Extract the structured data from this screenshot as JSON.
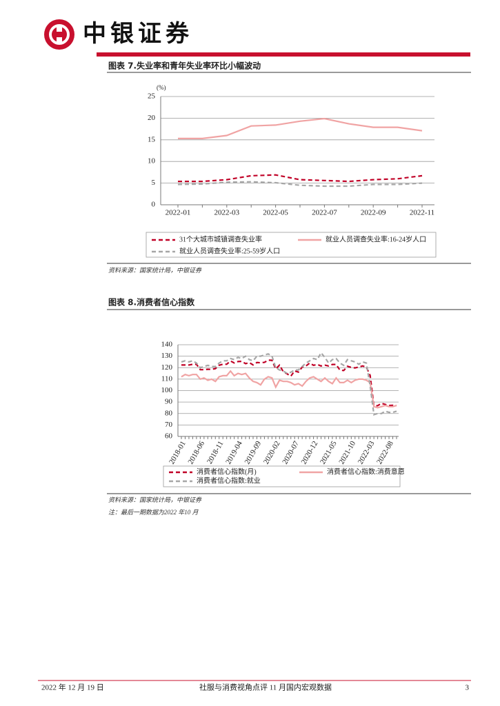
{
  "header": {
    "brand": "中银证券"
  },
  "chart_data": [
    {
      "type": "line",
      "title": "图表 7.失业率和青年失业率环比小幅波动",
      "y_unit": "(%)",
      "categories": [
        "2022-01",
        null,
        "2022-03",
        null,
        "2022-05",
        null,
        "2022-07",
        null,
        "2022-09",
        null,
        "2022-11"
      ],
      "series": [
        {
          "name": "31个大城市城镇调查失业率",
          "color": "#c00026",
          "style": "dashed",
          "values": [
            5.4,
            5.4,
            5.8,
            6.7,
            6.9,
            5.8,
            5.6,
            5.4,
            5.8,
            6.0,
            6.7
          ]
        },
        {
          "name": "就业人员调查失业率:16-24岁人口",
          "color": "#f0a3a3",
          "style": "solid",
          "values": [
            15.3,
            15.3,
            16.0,
            18.2,
            18.4,
            19.3,
            19.9,
            18.7,
            17.9,
            17.9,
            17.1
          ]
        },
        {
          "name": "就业人员调查失业率:25-59岁人口",
          "color": "#a6a6a6",
          "style": "dashed",
          "values": [
            4.7,
            4.8,
            5.2,
            5.3,
            5.1,
            4.5,
            4.3,
            4.3,
            4.7,
            4.7,
            5.0
          ]
        }
      ],
      "ylim": [
        0,
        25
      ],
      "yticks": [
        0,
        5,
        10,
        15,
        20,
        25
      ],
      "grid": true
    },
    {
      "type": "line",
      "title": "图表 8.消费者信心指数",
      "categories": [
        "2018-01",
        null,
        null,
        null,
        null,
        "2018-06",
        null,
        null,
        null,
        null,
        "2018-11",
        null,
        null,
        null,
        null,
        "2019-04",
        null,
        null,
        null,
        null,
        "2019-09",
        null,
        null,
        null,
        null,
        "2020-02",
        null,
        null,
        null,
        null,
        "2020-07",
        null,
        null,
        null,
        null,
        "2020-12",
        null,
        null,
        null,
        null,
        "2021-05",
        null,
        null,
        null,
        null,
        "2021-10",
        null,
        null,
        null,
        null,
        "2022-03",
        null,
        null,
        null,
        null,
        "2022-08",
        null,
        null
      ],
      "series": [
        {
          "name": "消费者信心指数(月)",
          "color": "#c00026",
          "style": "dashed",
          "values": [
            122.3,
            122.3,
            122.3,
            122.9,
            122.9,
            118.2,
            118.2,
            118.6,
            118.5,
            119.1,
            122.1,
            123.0,
            123.0,
            125.8,
            124.1,
            125.3,
            125.5,
            123.5,
            124.4,
            122.4,
            124.5,
            124.3,
            124.6,
            126.6,
            126.4,
            118.9,
            122.2,
            116.4,
            114.6,
            112.6,
            117.2,
            116.1,
            120.5,
            121.5,
            124.0,
            122.1,
            122.8,
            121.5,
            122.2,
            121.5,
            122.8,
            122.8,
            117.8,
            117.5,
            121.2,
            120.2,
            119.8,
            120.5,
            121.5,
            120.5,
            113.2,
            86.7,
            86.8,
            88.9,
            87.9,
            87.0,
            87.2,
            86.8
          ]
        },
        {
          "name": "消费者信心指数:消费意愿",
          "color": "#f0a3a3",
          "style": "solid",
          "values": [
            112,
            114,
            113,
            114,
            114,
            110,
            111,
            109,
            110,
            108,
            112,
            113,
            113,
            117,
            113,
            115,
            114,
            115,
            111,
            108,
            107,
            105,
            110,
            112,
            111,
            103,
            109,
            108,
            108,
            107,
            105,
            106,
            104,
            108,
            111,
            112,
            110,
            108,
            111,
            108,
            106,
            111,
            107,
            107,
            109,
            107,
            109,
            110,
            110,
            109,
            107,
            86,
            85,
            86,
            87,
            86,
            86,
            87
          ]
        },
        {
          "name": "消费者信心指数:就业",
          "color": "#a6a6a6",
          "style": "dashed",
          "values": [
            125,
            126,
            125,
            126,
            124,
            120,
            121,
            122,
            121,
            121,
            124,
            126,
            126,
            128,
            127,
            129,
            128,
            130,
            127,
            126,
            130,
            130,
            131,
            132,
            130,
            120,
            118,
            117,
            115,
            116,
            118,
            118,
            121,
            124,
            126,
            128,
            127,
            133,
            129,
            124,
            127,
            128,
            124,
            122,
            127,
            126,
            125,
            123,
            125,
            124,
            104,
            79,
            80,
            80,
            82,
            81,
            81,
            82
          ]
        }
      ],
      "ylim": [
        60,
        140
      ],
      "yticks": [
        60,
        70,
        80,
        90,
        100,
        110,
        120,
        130,
        140
      ],
      "grid": true
    }
  ],
  "figures": [
    {
      "source": "资料来源：国家统计局，中银证券"
    },
    {
      "source": "资料来源：国家统计局，中银证券",
      "note": "注：最后一期数据为2022 年10 月"
    }
  ],
  "footer": {
    "date": "2022 年 12 月 19 日",
    "report": "社服与消费视角点评 11 月国内宏观数据",
    "page": "3"
  }
}
